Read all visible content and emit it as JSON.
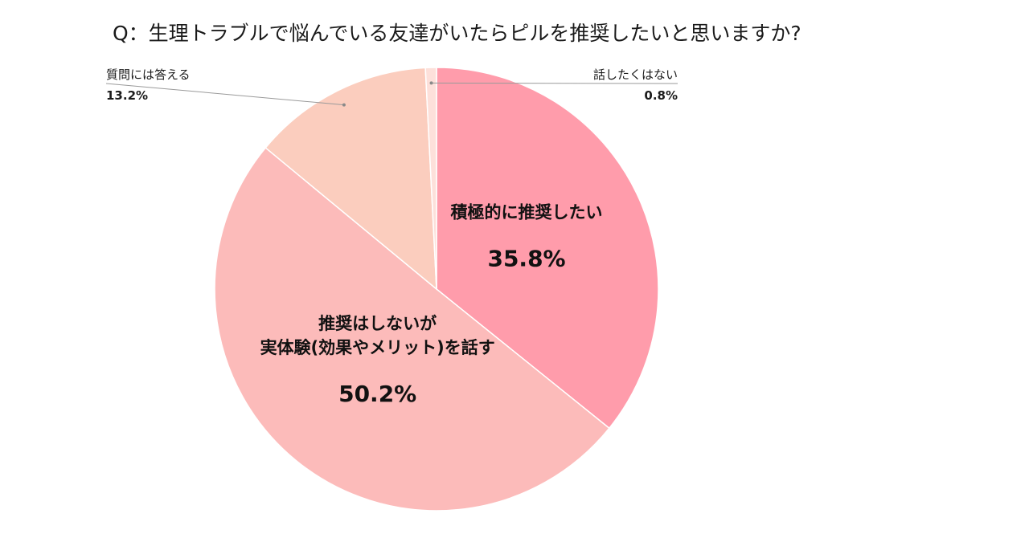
{
  "chart_data": {
    "type": "pie",
    "title": "Q：生理トラブルで悩んでいる友達がいたらピルを推奨したいと思いますか?",
    "slices": [
      {
        "label_lines": [
          "積極的に推奨したい"
        ],
        "value": 35.8,
        "value_label": "35.8%",
        "color": "#ff9cab",
        "label_position": "inside"
      },
      {
        "label_lines": [
          "推奨はしないが",
          "実体験(効果やメリット)を話す"
        ],
        "value": 50.2,
        "value_label": "50.2%",
        "color": "#fcbbba",
        "label_position": "inside"
      },
      {
        "label_lines": [
          "質問には答える"
        ],
        "value": 13.2,
        "value_label": "13.2%",
        "color": "#fbcdbe",
        "label_position": "outside-left"
      },
      {
        "label_lines": [
          "話したくはない"
        ],
        "value": 0.8,
        "value_label": "0.8%",
        "color": "#fde0da",
        "label_position": "outside-right"
      }
    ],
    "start_angle_deg": 0,
    "direction": "clockwise",
    "legend": "none"
  }
}
